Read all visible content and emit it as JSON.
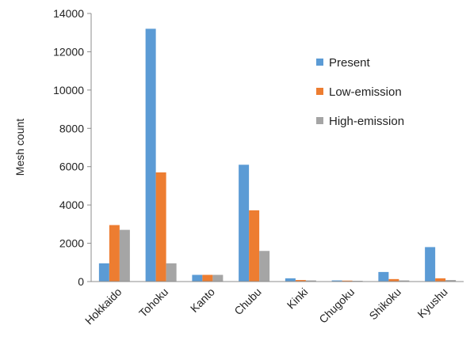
{
  "chart_data": {
    "type": "bar",
    "title": "",
    "xlabel": "",
    "ylabel": "Mesh count",
    "ylim": [
      0,
      14000
    ],
    "yticks": [
      0,
      2000,
      4000,
      6000,
      8000,
      10000,
      12000,
      14000
    ],
    "grid": false,
    "legend_position": "right",
    "categories": [
      "Hokkaido",
      "Tohoku",
      "Kanto",
      "Chubu",
      "Kinki",
      "Chugoku",
      "Shikoku",
      "Kyushu"
    ],
    "series": [
      {
        "name": "Present",
        "color": "#5b9bd5",
        "values": [
          950,
          13200,
          350,
          6100,
          170,
          60,
          500,
          1800
        ]
      },
      {
        "name": "Low-emission",
        "color": "#ed7d31",
        "values": [
          2950,
          5700,
          350,
          3720,
          80,
          50,
          130,
          170
        ]
      },
      {
        "name": "High-emission",
        "color": "#a5a5a5",
        "values": [
          2700,
          950,
          350,
          1600,
          60,
          40,
          60,
          80
        ]
      }
    ]
  }
}
